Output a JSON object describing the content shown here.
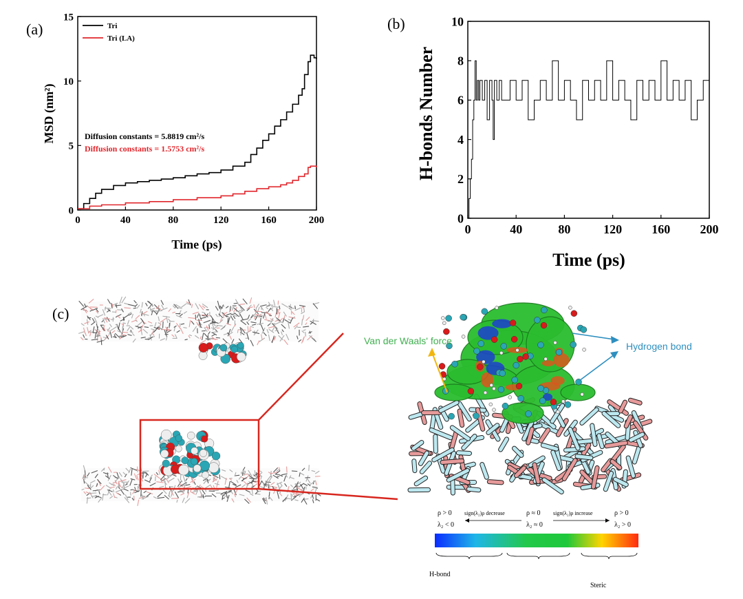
{
  "panel_a": {
    "label": "(a)",
    "chart_data": {
      "type": "line",
      "title": "",
      "xlabel": "Time (ps)",
      "ylabel": "MSD (nm²)",
      "xlim": [
        0,
        200
      ],
      "ylim": [
        0,
        15
      ],
      "xticks": [
        0,
        40,
        80,
        120,
        160,
        200
      ],
      "yticks": [
        0,
        5,
        10,
        15
      ],
      "legend_position": "top-left",
      "series": [
        {
          "name": "Tri",
          "color": "#000000",
          "x": [
            0,
            5,
            10,
            15,
            20,
            30,
            40,
            50,
            60,
            70,
            80,
            90,
            100,
            110,
            120,
            130,
            140,
            145,
            150,
            155,
            160,
            165,
            170,
            175,
            180,
            185,
            188,
            190,
            193,
            195,
            198,
            200
          ],
          "y": [
            0.1,
            0.5,
            0.9,
            1.3,
            1.6,
            1.9,
            2.1,
            2.2,
            2.3,
            2.4,
            2.5,
            2.65,
            2.8,
            2.9,
            3.1,
            3.4,
            3.7,
            4.3,
            4.8,
            5.4,
            5.9,
            6.5,
            7.0,
            7.6,
            8.2,
            8.9,
            9.4,
            10.5,
            11.5,
            12.0,
            11.8,
            11.7
          ]
        },
        {
          "name": "Tri (LA)",
          "color": "#e0252b",
          "x": [
            0,
            10,
            20,
            40,
            60,
            80,
            100,
            120,
            130,
            140,
            150,
            160,
            170,
            175,
            180,
            185,
            190,
            193,
            195,
            200
          ],
          "y": [
            0.1,
            0.3,
            0.4,
            0.55,
            0.65,
            0.8,
            0.95,
            1.1,
            1.25,
            1.45,
            1.65,
            1.8,
            1.95,
            2.1,
            2.3,
            2.6,
            2.8,
            3.3,
            3.4,
            3.3
          ]
        }
      ],
      "annotations": [
        {
          "text": "Diffusion constants = 5.8819 cm²/s",
          "color": "#000000"
        },
        {
          "text": "Diffusion constants = 1.5753 cm²/s",
          "color": "#e0252b"
        }
      ]
    }
  },
  "panel_b": {
    "label": "(b)",
    "chart_data": {
      "type": "line",
      "title": "",
      "xlabel": "Time (ps)",
      "ylabel": "H-bonds Number",
      "xlim": [
        0,
        200
      ],
      "ylim": [
        0,
        10
      ],
      "xticks": [
        0,
        40,
        80,
        120,
        160,
        200
      ],
      "yticks": [
        0,
        2,
        4,
        6,
        8,
        10
      ],
      "series": [
        {
          "name": "H-bonds",
          "color": "#000000",
          "x": [
            0,
            1,
            2,
            3,
            4,
            5,
            6,
            7,
            8,
            9,
            10,
            12,
            14,
            16,
            18,
            20,
            21,
            22,
            24,
            26,
            28,
            30,
            35,
            40,
            45,
            50,
            55,
            60,
            65,
            70,
            75,
            80,
            85,
            90,
            95,
            100,
            105,
            110,
            115,
            120,
            125,
            130,
            135,
            140,
            145,
            150,
            155,
            160,
            165,
            170,
            175,
            180,
            185,
            190,
            195,
            200
          ],
          "y": [
            0,
            1,
            2,
            3,
            5,
            6,
            8,
            6,
            7,
            6,
            7,
            6,
            7,
            5,
            7,
            6,
            4,
            7,
            6,
            7,
            6,
            6,
            7,
            6,
            7,
            5,
            6,
            7,
            6,
            8,
            6,
            7,
            6,
            5,
            7,
            6,
            7,
            6,
            8,
            6,
            7,
            6,
            5,
            7,
            6,
            7,
            6,
            8,
            6,
            7,
            6,
            7,
            5,
            6,
            7,
            6
          ]
        }
      ]
    }
  },
  "panel_c": {
    "label": "(c)",
    "annotation_vdw": "Van der Waals' force",
    "annotation_hbond": "Hydrogen bond",
    "colorbar": {
      "left_cond1": "ρ > 0",
      "left_cond2": "λ₂ < 0",
      "mid_cond1": "ρ ≈ 0",
      "mid_cond2": "λ₂ ≈ 0",
      "right_cond1": "ρ > 0",
      "right_cond2": "λ₂ > 0",
      "arrow_left": "sign(λ₂)ρ decrease",
      "arrow_right": "sign(λ₂)ρ increase",
      "gradient": [
        "#0a2cff",
        "#1fb6e8",
        "#22c84a",
        "#1ec83a",
        "#ffd400",
        "#ff2b10"
      ],
      "bottom_left": "H-bond",
      "bottom_right": "Steric"
    },
    "colors": {
      "green_surface": "#2bbd2f",
      "carbon": "#2aa6b4",
      "oxygen": "#d81b1b",
      "hydrogen": "#eeeeee",
      "substrate_light": "#bde8f0",
      "substrate_pink": "#e79a9a",
      "box_red": "#d7261e",
      "annot_green": "#40b050",
      "annot_blue": "#2e8fbf",
      "arrow_yellow": "#f1b60e"
    }
  }
}
